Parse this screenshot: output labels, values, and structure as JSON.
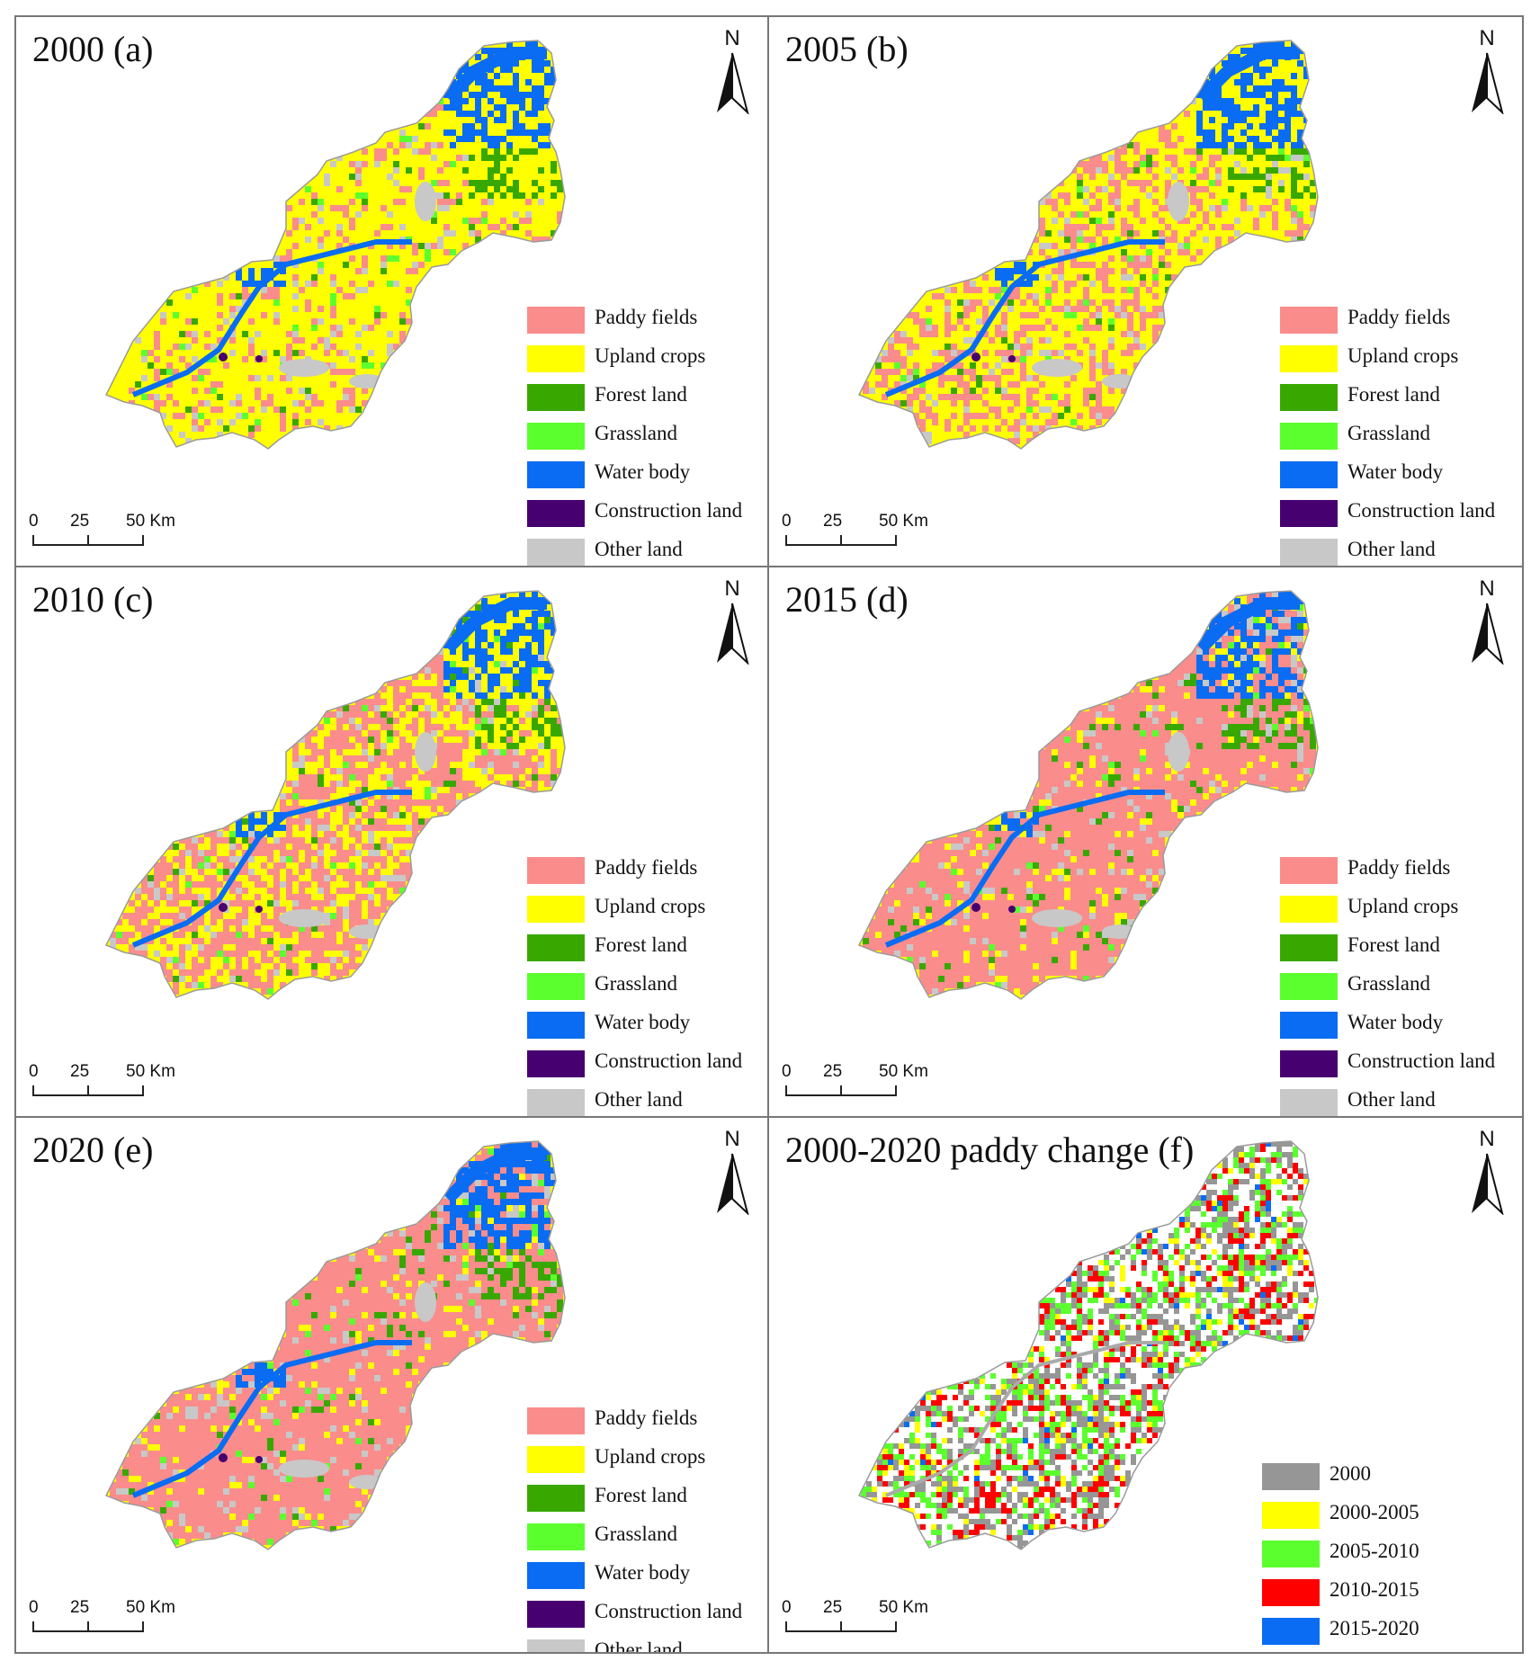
{
  "colors": {
    "paddy": "#fa8c8c",
    "upland": "#ffff00",
    "forest": "#38a800",
    "grass": "#5cff2e",
    "water": "#0a6cf2",
    "construction": "#470070",
    "other": "#c8c8c8",
    "change_2000": "#969696",
    "change_2000_2005": "#ffff00",
    "change_2005_2010": "#5cff2e",
    "change_2010_2015": "#ff0000",
    "change_2015_2020": "#0a6cf2"
  },
  "north_letter": "N",
  "scale": {
    "t0": "0",
    "t1": "25",
    "t2": "50 Km"
  },
  "landuse_legend": [
    {
      "label": "Paddy fields",
      "color": "#fa8c8c"
    },
    {
      "label": "Upland crops",
      "color": "#ffff00"
    },
    {
      "label": "Forest land",
      "color": "#38a800"
    },
    {
      "label": "Grassland",
      "color": "#5cff2e"
    },
    {
      "label": "Water body",
      "color": "#0a6cf2"
    },
    {
      "label": "Construction land",
      "color": "#470070"
    },
    {
      "label": "Other land",
      "color": "#c8c8c8"
    }
  ],
  "change_legend": [
    {
      "label": "2000",
      "color": "#969696"
    },
    {
      "label": "2000-2005",
      "color": "#ffff00"
    },
    {
      "label": "2005-2010",
      "color": "#5cff2e"
    },
    {
      "label": "2010-2015",
      "color": "#ff0000"
    },
    {
      "label": "2015-2020",
      "color": "#0a6cf2"
    }
  ],
  "panels": [
    {
      "title": "2000 (a)",
      "type": "landuse",
      "paddy_share": 0.15
    },
    {
      "title": "2005 (b)",
      "type": "landuse",
      "paddy_share": 0.35
    },
    {
      "title": "2010 (c)",
      "type": "landuse",
      "paddy_share": 0.5
    },
    {
      "title": "2015 (d)",
      "type": "landuse",
      "paddy_share": 0.8
    },
    {
      "title": "2020 (e)",
      "type": "landuse",
      "paddy_share": 0.82
    },
    {
      "title": "2000-2020 paddy change (f)",
      "type": "change"
    }
  ]
}
